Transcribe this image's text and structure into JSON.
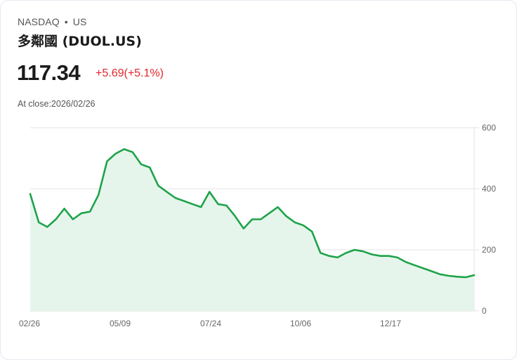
{
  "header": {
    "exchange": "NASDAQ",
    "separator": "•",
    "market": "US",
    "title": "多鄰國 (DUOL.US)",
    "price": "117.34",
    "change": "+5.69(+5.1%)",
    "close_label": "At close:2026/02/26"
  },
  "colors": {
    "line": "#1ea34a",
    "fill": "#e6f5ec",
    "change_up": "#e0262b",
    "grid": "#e0e0e0"
  },
  "chart_data": {
    "type": "area",
    "title": "多鄰國 (DUOL.US)",
    "xlabel": "",
    "ylabel": "",
    "ylim": [
      0,
      600
    ],
    "y_ticks": [
      "600",
      "400",
      "200",
      "0"
    ],
    "x_ticks": [
      "02/26",
      "05/09",
      "07/24",
      "10/06",
      "12/17"
    ],
    "grid": true,
    "axis_position": "right",
    "series": [
      {
        "name": "DUOL.US",
        "x": [
          "02/26",
          "03/05",
          "03/12",
          "03/19",
          "03/26",
          "04/02",
          "04/09",
          "04/16",
          "04/23",
          "04/30",
          "05/07",
          "05/14",
          "05/21",
          "05/28",
          "06/04",
          "06/11",
          "06/18",
          "06/25",
          "07/02",
          "07/09",
          "07/16",
          "07/23",
          "07/30",
          "08/06",
          "08/13",
          "08/20",
          "08/27",
          "09/03",
          "09/10",
          "09/17",
          "09/24",
          "10/01",
          "10/08",
          "10/15",
          "10/22",
          "10/29",
          "11/05",
          "11/12",
          "11/19",
          "11/26",
          "12/03",
          "12/10",
          "12/17",
          "12/24",
          "12/31",
          "01/07",
          "01/14",
          "01/21",
          "01/28",
          "02/04",
          "02/11",
          "02/18",
          "02/26"
        ],
        "values": [
          383,
          290,
          275,
          300,
          335,
          300,
          320,
          325,
          380,
          490,
          515,
          530,
          520,
          480,
          470,
          410,
          390,
          370,
          360,
          350,
          340,
          390,
          350,
          345,
          310,
          270,
          300,
          300,
          320,
          340,
          310,
          290,
          280,
          260,
          190,
          180,
          175,
          190,
          200,
          195,
          185,
          180,
          180,
          175,
          160,
          150,
          140,
          130,
          120,
          115,
          112,
          110,
          117
        ]
      }
    ]
  }
}
